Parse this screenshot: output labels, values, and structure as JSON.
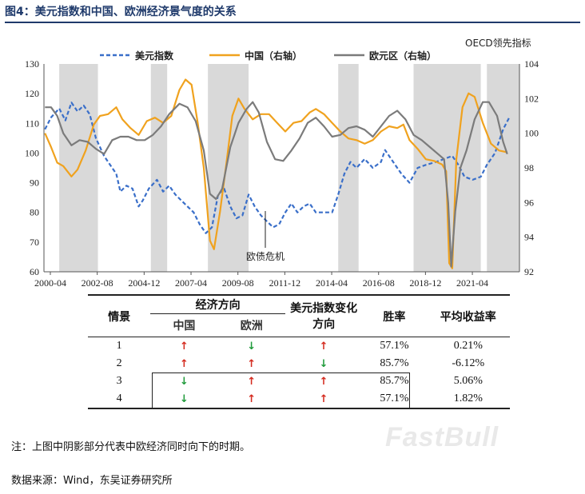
{
  "figure_title": "图4：美元指数和中国、欧洲经济景气度的关系",
  "chart_data": {
    "type": "line",
    "note_top_right": "OECD领先指标",
    "annotation": "欧债危机",
    "left_axis": {
      "ylim": [
        60,
        130
      ],
      "ticks": [
        "60",
        "70",
        "80",
        "90",
        "100",
        "110",
        "120",
        "130"
      ]
    },
    "right_axis": {
      "ylim": [
        92,
        104
      ],
      "ticks": [
        "92",
        "94",
        "96",
        "98",
        "100",
        "102",
        "104"
      ]
    },
    "x_axis": {
      "range": [
        2000.25,
        2023.6
      ],
      "tick_labels": [
        "2000-04",
        "2002-08",
        "2004-12",
        "2007-04",
        "2009-08",
        "2011-12",
        "2014-04",
        "2016-08",
        "2018-12",
        "2021-04"
      ]
    },
    "shaded_periods": [
      [
        2001.0,
        2002.9
      ],
      [
        2005.5,
        2006.3
      ],
      [
        2008.3,
        2010.3
      ],
      [
        2014.7,
        2015.7
      ],
      [
        2018.4,
        2021.7
      ],
      [
        2022.0,
        2023.6
      ]
    ],
    "series": [
      {
        "name": "美元指数",
        "axis": "left",
        "color": "#3a6fc9",
        "dash": true,
        "points": [
          [
            2000.3,
            108
          ],
          [
            2000.6,
            112
          ],
          [
            2001.0,
            115
          ],
          [
            2001.3,
            111
          ],
          [
            2001.6,
            117
          ],
          [
            2001.9,
            114
          ],
          [
            2002.2,
            116
          ],
          [
            2002.5,
            113
          ],
          [
            2002.8,
            105
          ],
          [
            2003.2,
            99
          ],
          [
            2003.5,
            96
          ],
          [
            2003.8,
            93
          ],
          [
            2004.0,
            87
          ],
          [
            2004.3,
            89
          ],
          [
            2004.6,
            88
          ],
          [
            2004.9,
            82
          ],
          [
            2005.1,
            84
          ],
          [
            2005.4,
            88
          ],
          [
            2005.8,
            91
          ],
          [
            2006.1,
            87
          ],
          [
            2006.4,
            89
          ],
          [
            2006.7,
            86
          ],
          [
            2007.0,
            84
          ],
          [
            2007.3,
            82
          ],
          [
            2007.6,
            80
          ],
          [
            2007.9,
            76
          ],
          [
            2008.2,
            73
          ],
          [
            2008.5,
            75
          ],
          [
            2008.8,
            86
          ],
          [
            2009.1,
            88
          ],
          [
            2009.4,
            82
          ],
          [
            2009.7,
            78
          ],
          [
            2010.0,
            79
          ],
          [
            2010.3,
            86
          ],
          [
            2010.6,
            82
          ],
          [
            2010.9,
            79
          ],
          [
            2011.2,
            77
          ],
          [
            2011.5,
            75
          ],
          [
            2011.8,
            76
          ],
          [
            2012.1,
            80
          ],
          [
            2012.4,
            83
          ],
          [
            2012.7,
            80
          ],
          [
            2013.0,
            82
          ],
          [
            2013.3,
            83
          ],
          [
            2013.6,
            80
          ],
          [
            2014.0,
            80
          ],
          [
            2014.4,
            80
          ],
          [
            2014.7,
            86
          ],
          [
            2015.0,
            93
          ],
          [
            2015.3,
            97
          ],
          [
            2015.6,
            95
          ],
          [
            2016.0,
            98
          ],
          [
            2016.4,
            95
          ],
          [
            2016.8,
            97
          ],
          [
            2017.0,
            101
          ],
          [
            2017.4,
            97
          ],
          [
            2017.8,
            93
          ],
          [
            2018.2,
            90
          ],
          [
            2018.6,
            95
          ],
          [
            2019.0,
            96
          ],
          [
            2019.5,
            97
          ],
          [
            2019.9,
            98
          ],
          [
            2020.3,
            99
          ],
          [
            2020.6,
            96
          ],
          [
            2020.9,
            92
          ],
          [
            2021.3,
            91
          ],
          [
            2021.7,
            92
          ],
          [
            2022.0,
            96
          ],
          [
            2022.4,
            100
          ],
          [
            2022.8,
            108
          ],
          [
            2023.1,
            112
          ]
        ]
      },
      {
        "name": "中国（右轴）",
        "axis": "right",
        "color": "#f0a21e",
        "dash": false,
        "points": [
          [
            2000.3,
            100
          ],
          [
            2000.6,
            99.2
          ],
          [
            2000.9,
            98.3
          ],
          [
            2001.2,
            98.1
          ],
          [
            2001.6,
            97.5
          ],
          [
            2001.9,
            97.9
          ],
          [
            2002.3,
            99
          ],
          [
            2002.7,
            100.5
          ],
          [
            2003.0,
            101
          ],
          [
            2003.4,
            101.1
          ],
          [
            2003.8,
            101.5
          ],
          [
            2004.1,
            100.8
          ],
          [
            2004.5,
            100.3
          ],
          [
            2004.9,
            99.9
          ],
          [
            2005.3,
            100.7
          ],
          [
            2005.7,
            100.9
          ],
          [
            2006.1,
            100.6
          ],
          [
            2006.5,
            101
          ],
          [
            2006.9,
            102.5
          ],
          [
            2007.2,
            103.1
          ],
          [
            2007.5,
            102.8
          ],
          [
            2007.8,
            100.6
          ],
          [
            2008.1,
            98
          ],
          [
            2008.4,
            93.8
          ],
          [
            2008.6,
            93.3
          ],
          [
            2008.9,
            95.5
          ],
          [
            2009.2,
            98.2
          ],
          [
            2009.5,
            101
          ],
          [
            2009.8,
            102
          ],
          [
            2010.1,
            101.4
          ],
          [
            2010.5,
            100.8
          ],
          [
            2010.9,
            101.1
          ],
          [
            2011.3,
            101.1
          ],
          [
            2011.7,
            100.6
          ],
          [
            2012.1,
            100.1
          ],
          [
            2012.5,
            100.6
          ],
          [
            2012.9,
            100.7
          ],
          [
            2013.3,
            101.2
          ],
          [
            2013.6,
            101.4
          ],
          [
            2014.0,
            101.1
          ],
          [
            2014.4,
            100.6
          ],
          [
            2014.8,
            100.1
          ],
          [
            2015.2,
            99.7
          ],
          [
            2015.6,
            99.6
          ],
          [
            2016.0,
            99.4
          ],
          [
            2016.4,
            99.6
          ],
          [
            2016.8,
            100.1
          ],
          [
            2017.2,
            100.4
          ],
          [
            2017.6,
            100.3
          ],
          [
            2017.9,
            100.5
          ],
          [
            2018.2,
            99.6
          ],
          [
            2018.6,
            99.1
          ],
          [
            2019.0,
            98.5
          ],
          [
            2019.4,
            98.4
          ],
          [
            2019.8,
            98.2
          ],
          [
            2020.0,
            97.8
          ],
          [
            2020.15,
            92.5
          ],
          [
            2020.3,
            92.2
          ],
          [
            2020.5,
            98.5
          ],
          [
            2020.8,
            101.5
          ],
          [
            2021.1,
            102.3
          ],
          [
            2021.4,
            102.1
          ],
          [
            2021.8,
            100.6
          ],
          [
            2022.2,
            99.4
          ],
          [
            2022.6,
            99.0
          ],
          [
            2023.0,
            98.9
          ]
        ]
      },
      {
        "name": "欧元区（右轴）",
        "axis": "right",
        "color": "#7b7b7b",
        "dash": false,
        "points": [
          [
            2000.3,
            101.5
          ],
          [
            2000.6,
            101.5
          ],
          [
            2000.9,
            101
          ],
          [
            2001.2,
            100
          ],
          [
            2001.6,
            99.3
          ],
          [
            2002.0,
            99.6
          ],
          [
            2002.4,
            99.5
          ],
          [
            2002.8,
            99.1
          ],
          [
            2003.2,
            98.8
          ],
          [
            2003.6,
            99.6
          ],
          [
            2004.0,
            99.8
          ],
          [
            2004.4,
            99.8
          ],
          [
            2004.8,
            99.6
          ],
          [
            2005.2,
            99.6
          ],
          [
            2005.6,
            99.9
          ],
          [
            2006.0,
            100.4
          ],
          [
            2006.4,
            101.1
          ],
          [
            2006.9,
            101.7
          ],
          [
            2007.3,
            101.5
          ],
          [
            2007.7,
            100.7
          ],
          [
            2008.1,
            99
          ],
          [
            2008.4,
            96.5
          ],
          [
            2008.7,
            96.2
          ],
          [
            2009.0,
            96.8
          ],
          [
            2009.4,
            99.2
          ],
          [
            2009.8,
            100.6
          ],
          [
            2010.2,
            101.4
          ],
          [
            2010.5,
            101.8
          ],
          [
            2010.8,
            101.2
          ],
          [
            2011.2,
            99.5
          ],
          [
            2011.6,
            98.5
          ],
          [
            2012.0,
            98.4
          ],
          [
            2012.4,
            99
          ],
          [
            2012.8,
            99.7
          ],
          [
            2013.2,
            100.6
          ],
          [
            2013.6,
            100.9
          ],
          [
            2014.0,
            100.4
          ],
          [
            2014.4,
            99.8
          ],
          [
            2014.8,
            99.9
          ],
          [
            2015.2,
            100.3
          ],
          [
            2015.6,
            100.4
          ],
          [
            2016.0,
            100.2
          ],
          [
            2016.4,
            99.8
          ],
          [
            2016.8,
            100.4
          ],
          [
            2017.2,
            101
          ],
          [
            2017.6,
            101.3
          ],
          [
            2018.0,
            100.8
          ],
          [
            2018.4,
            99.9
          ],
          [
            2018.8,
            99.6
          ],
          [
            2019.2,
            99.2
          ],
          [
            2019.6,
            98.8
          ],
          [
            2019.9,
            98.5
          ],
          [
            2020.1,
            96
          ],
          [
            2020.25,
            92.3
          ],
          [
            2020.45,
            95.5
          ],
          [
            2020.7,
            98
          ],
          [
            2021.0,
            99
          ],
          [
            2021.4,
            100.8
          ],
          [
            2021.8,
            101.8
          ],
          [
            2022.1,
            101.8
          ],
          [
            2022.5,
            101
          ],
          [
            2022.8,
            99.5
          ],
          [
            2023.0,
            98.8
          ]
        ]
      }
    ]
  },
  "table": {
    "headers": {
      "scenario": "情景",
      "econ_direction": "经济方向",
      "china": "中国",
      "europe": "欧洲",
      "usd_direction": "美元指数变化方向",
      "win_rate": "胜率",
      "avg_return": "平均收益率"
    },
    "rows": [
      {
        "scenario": "1",
        "china": "up",
        "europe": "down",
        "usd": "up",
        "win_rate": "57.1%",
        "avg_return": "0.21%"
      },
      {
        "scenario": "2",
        "china": "up",
        "europe": "up",
        "usd": "down",
        "win_rate": "85.7%",
        "avg_return": "-6.12%"
      },
      {
        "scenario": "3",
        "china": "down",
        "europe": "up",
        "usd": "up",
        "win_rate": "85.7%",
        "avg_return": "5.06%"
      },
      {
        "scenario": "4",
        "china": "down",
        "europe": "up",
        "usd": "up",
        "win_rate": "57.1%",
        "avg_return": "1.82%"
      }
    ]
  },
  "arrows": {
    "up": "↑",
    "down": "↓"
  },
  "footnote_1": "注：上图中阴影部分代表中欧经济同时向下的时期。",
  "footnote_2": "数据来源：Wind，东吴证券研究所",
  "watermark": "FastBull"
}
